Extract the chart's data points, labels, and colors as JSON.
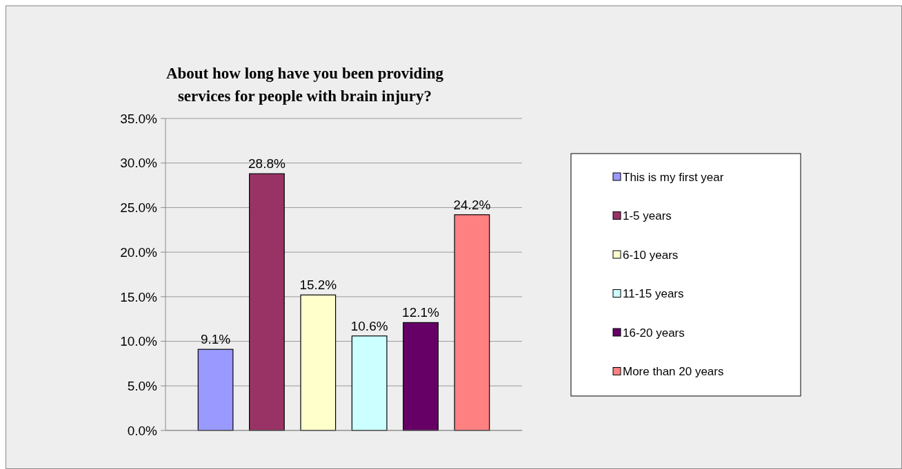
{
  "chart_data": {
    "type": "bar",
    "title": "About how long have you been providing services for people with brain injury?",
    "categories": [
      null
    ],
    "series": [
      {
        "name": "This is my first year",
        "color": "#9999ff",
        "values": [
          9.1
        ]
      },
      {
        "name": "1-5 years",
        "color": "#993366",
        "values": [
          28.8
        ]
      },
      {
        "name": "6-10 years",
        "color": "#ffffcc",
        "values": [
          15.2
        ]
      },
      {
        "name": "11-15 years",
        "color": "#ccffff",
        "values": [
          10.6
        ]
      },
      {
        "name": "16-20 years",
        "color": "#660066",
        "values": [
          12.1
        ]
      },
      {
        "name": "More than 20 years",
        "color": "#ff8080",
        "values": [
          24.2
        ]
      }
    ],
    "ylim": [
      0,
      35
    ],
    "yticks": [
      {
        "value": 0,
        "label": "0.0%"
      },
      {
        "value": 5,
        "label": "5.0%"
      },
      {
        "value": 10,
        "label": "10.0%"
      },
      {
        "value": 15,
        "label": "15.0%"
      },
      {
        "value": 20,
        "label": "20.0%"
      },
      {
        "value": 25,
        "label": "25.0%"
      },
      {
        "value": 30,
        "label": "30.0%"
      },
      {
        "value": 35,
        "label": "35.0%"
      }
    ],
    "value_labels": [
      "9.1%",
      "28.8%",
      "15.2%",
      "10.6%",
      "12.1%",
      "24.2%"
    ],
    "grid": "y",
    "legend": "right"
  }
}
